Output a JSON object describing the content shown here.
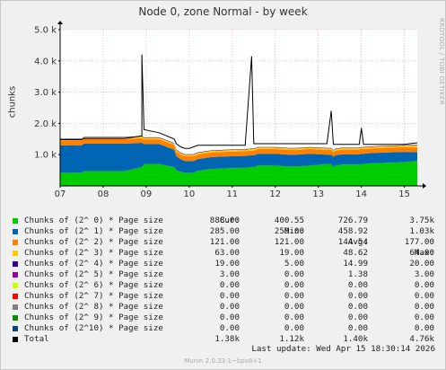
{
  "title": "Node 0, zone Normal - by week",
  "side_text": "RRDTOOL / TOBI OETIKER",
  "footer": "Munin 2.0.33-1~bpo8+1",
  "last_update": "Last update: Wed Apr 15 18:30:14 2026",
  "legend_headers": {
    "cur": "Cur:",
    "min": "Min:",
    "avg": "Avg:",
    "max": "Max:"
  },
  "chart_data": {
    "type": "area",
    "stacked": true,
    "ylabel": "chunks",
    "ylim": [
      0,
      5000
    ],
    "y_ticks": [
      {
        "value": 1000,
        "label": "1.0 k"
      },
      {
        "value": 2000,
        "label": "2.0 k"
      },
      {
        "value": 3000,
        "label": "3.0 k"
      },
      {
        "value": 4000,
        "label": "4.0 k"
      },
      {
        "value": 5000,
        "label": "5.0 k"
      }
    ],
    "xlim": [
      0,
      8.3
    ],
    "x_ticks": [
      {
        "value": 0,
        "label": "07"
      },
      {
        "value": 1,
        "label": "08"
      },
      {
        "value": 2,
        "label": "09"
      },
      {
        "value": 3,
        "label": "10"
      },
      {
        "value": 4,
        "label": "11"
      },
      {
        "value": 5,
        "label": "12"
      },
      {
        "value": 6,
        "label": "13"
      },
      {
        "value": 7,
        "label": "14"
      },
      {
        "value": 8,
        "label": "15"
      }
    ],
    "grid": true,
    "x": [
      0,
      0.5,
      0.55,
      1.5,
      1.9,
      1.9,
      1.95,
      2.3,
      2.65,
      2.7,
      2.8,
      2.9,
      3.0,
      3.1,
      3.2,
      3.5,
      3.8,
      4.3,
      4.45,
      4.5,
      4.6,
      5.0,
      5.3,
      5.5,
      5.8,
      6.2,
      6.3,
      6.35,
      6.4,
      6.55,
      6.8,
      6.95,
      7.0,
      7.05,
      7.2,
      7.6,
      8.0,
      8.3
    ],
    "series": [
      {
        "name": "Chunks of (2^ 0) * Page size",
        "color": "#00cc00",
        "values": [
          420,
          420,
          470,
          470,
          600,
          600,
          700,
          700,
          600,
          500,
          450,
          420,
          420,
          420,
          480,
          540,
          560,
          580,
          600,
          600,
          650,
          650,
          620,
          620,
          650,
          700,
          700,
          600,
          650,
          680,
          680,
          680,
          700,
          700,
          720,
          740,
          760,
          800
        ]
      },
      {
        "name": "Chunks of (2^ 1) * Page size",
        "color": "#0066b3",
        "values": [
          880,
          880,
          880,
          880,
          780,
          780,
          640,
          640,
          560,
          450,
          400,
          380,
          380,
          380,
          380,
          380,
          380,
          380,
          380,
          380,
          380,
          380,
          380,
          380,
          380,
          300,
          300,
          330,
          330,
          330,
          330,
          330,
          330,
          330,
          330,
          330,
          330,
          280
        ]
      },
      {
        "name": "Chunks of (2^ 2) * Page size",
        "color": "#ff8000",
        "values": [
          150,
          150,
          150,
          150,
          150,
          150,
          150,
          150,
          150,
          150,
          150,
          150,
          150,
          150,
          150,
          150,
          150,
          150,
          150,
          150,
          150,
          150,
          150,
          150,
          150,
          150,
          150,
          150,
          150,
          150,
          150,
          150,
          150,
          150,
          150,
          150,
          150,
          150
        ]
      },
      {
        "name": "Chunks of (2^ 3) * Page size",
        "color": "#ffcc00",
        "values": [
          50,
          50,
          50,
          50,
          50,
          50,
          50,
          50,
          50,
          50,
          50,
          50,
          50,
          50,
          50,
          50,
          50,
          50,
          50,
          50,
          50,
          50,
          50,
          50,
          50,
          50,
          50,
          50,
          50,
          50,
          50,
          50,
          50,
          50,
          50,
          50,
          50,
          60
        ]
      },
      {
        "name": "Chunks of (2^ 4) * Page size",
        "color": "#330099",
        "values": [
          15,
          15,
          15,
          15,
          15,
          15,
          15,
          15,
          15,
          15,
          15,
          15,
          15,
          15,
          15,
          15,
          15,
          15,
          15,
          15,
          15,
          15,
          15,
          15,
          15,
          15,
          15,
          15,
          15,
          15,
          15,
          15,
          15,
          15,
          15,
          15,
          15,
          19
        ]
      }
    ],
    "total_line": {
      "name": "Total",
      "color": "#000000",
      "values": [
        1480,
        1480,
        1520,
        1520,
        1600,
        4200,
        1800,
        1700,
        1500,
        1350,
        1250,
        1200,
        1200,
        1250,
        1300,
        1300,
        1300,
        1300,
        4150,
        1350,
        1350,
        1350,
        1350,
        1350,
        1350,
        1350,
        2400,
        1330,
        1330,
        1330,
        1330,
        1330,
        1850,
        1330,
        1330,
        1330,
        1330,
        1380
      ]
    }
  },
  "legend": [
    {
      "label": "Chunks of (2^ 0) * Page size",
      "color": "#00cc00",
      "cur": "888.00",
      "min": "400.55",
      "avg": "726.79",
      "max": "3.75k"
    },
    {
      "label": "Chunks of (2^ 1) * Page size",
      "color": "#0066b3",
      "cur": "285.00",
      "min": "259.00",
      "avg": "458.92",
      "max": "1.03k"
    },
    {
      "label": "Chunks of (2^ 2) * Page size",
      "color": "#ff8000",
      "cur": "121.00",
      "min": "121.00",
      "avg": "144.54",
      "max": "177.00"
    },
    {
      "label": "Chunks of (2^ 3) * Page size",
      "color": "#ffcc00",
      "cur": "63.00",
      "min": "19.00",
      "avg": "48.62",
      "max": "64.00"
    },
    {
      "label": "Chunks of (2^ 4) * Page size",
      "color": "#330099",
      "cur": "19.00",
      "min": "5.00",
      "avg": "14.99",
      "max": "20.00"
    },
    {
      "label": "Chunks of (2^ 5) * Page size",
      "color": "#990099",
      "cur": "3.00",
      "min": "0.00",
      "avg": "1.38",
      "max": "3.00"
    },
    {
      "label": "Chunks of (2^ 6) * Page size",
      "color": "#ccff00",
      "cur": "0.00",
      "min": "0.00",
      "avg": "0.00",
      "max": "0.00"
    },
    {
      "label": "Chunks of (2^ 7) * Page size",
      "color": "#ff0000",
      "cur": "0.00",
      "min": "0.00",
      "avg": "0.00",
      "max": "0.00"
    },
    {
      "label": "Chunks of (2^ 8) * Page size",
      "color": "#808080",
      "cur": "0.00",
      "min": "0.00",
      "avg": "0.00",
      "max": "0.00"
    },
    {
      "label": "Chunks of (2^ 9) * Page size",
      "color": "#008f00",
      "cur": "0.00",
      "min": "0.00",
      "avg": "0.00",
      "max": "0.00"
    },
    {
      "label": "Chunks of (2^10) * Page size",
      "color": "#00487d",
      "cur": "0.00",
      "min": "0.00",
      "avg": "0.00",
      "max": "0.00"
    },
    {
      "label": "Total",
      "color": "#000000",
      "cur": "1.38k",
      "min": "1.12k",
      "avg": "1.40k",
      "max": "4.76k"
    }
  ]
}
